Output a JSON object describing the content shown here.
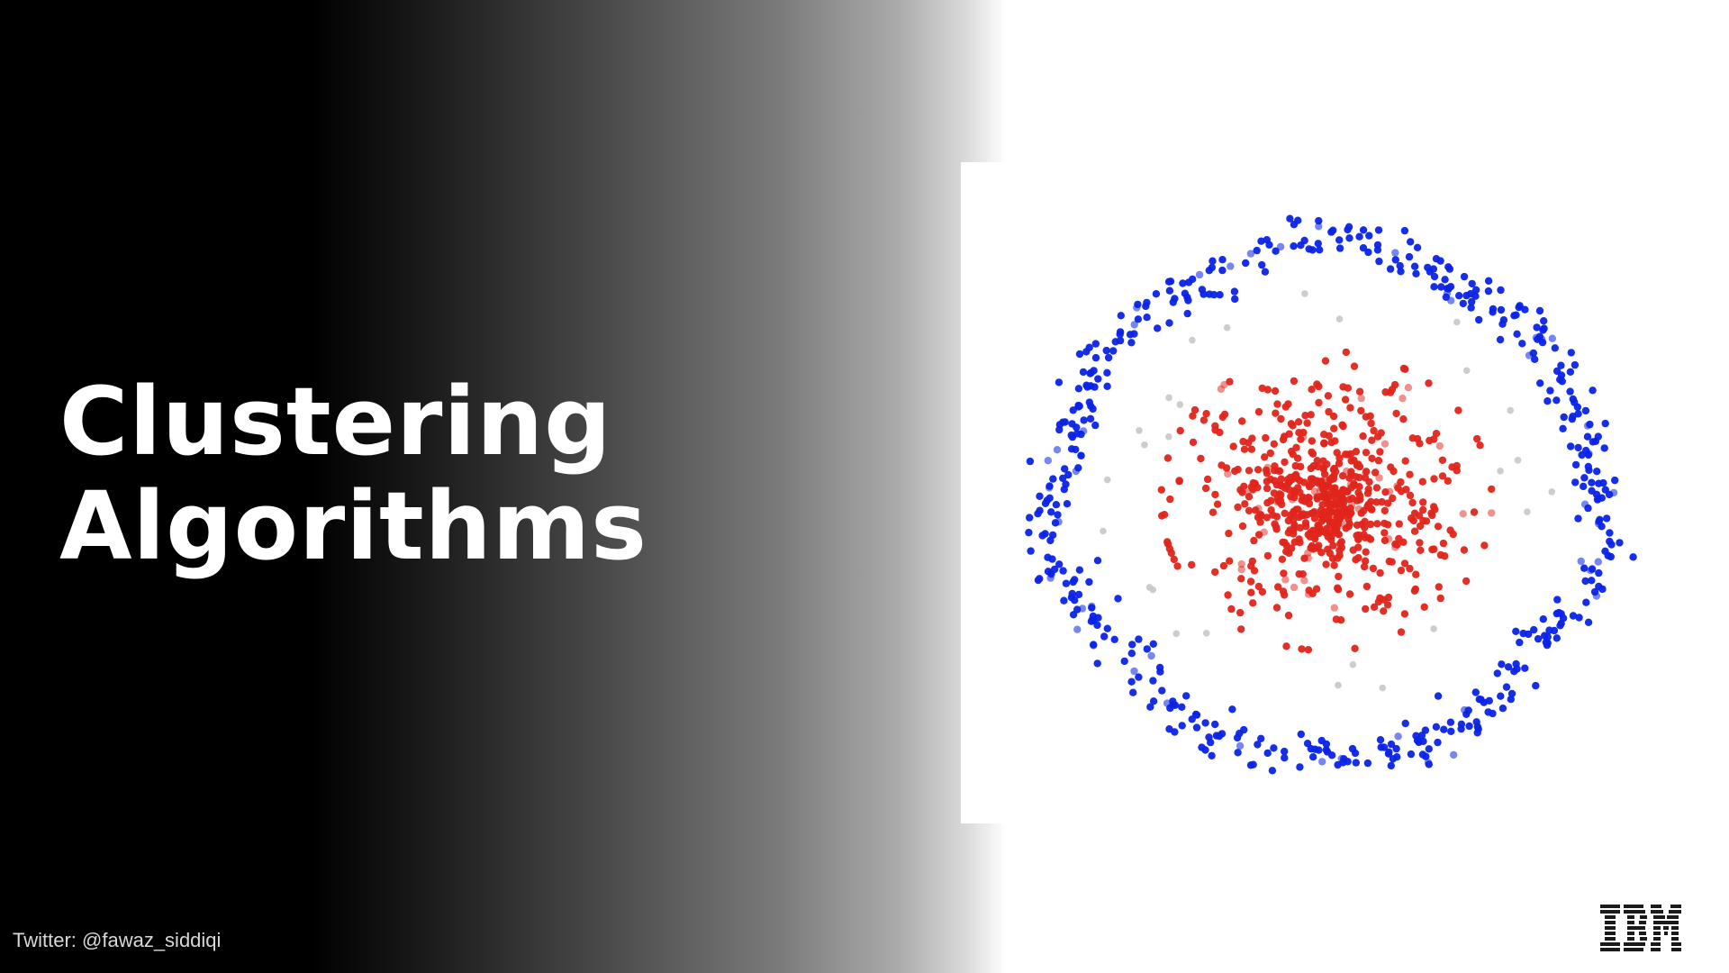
{
  "slide": {
    "title_line1": "Clustering",
    "title_line2": "Algorithms",
    "twitter_handle": "Twitter: @fawaz_siddiqi",
    "logo_text": "IBM"
  },
  "colors": {
    "outer_cluster": "#0a23e6",
    "inner_cluster": "#e0251b",
    "noise": "#c8c8c8",
    "title_text": "#ffffff",
    "logo": "#1a1a1a"
  },
  "icons": {
    "logo": "ibm-logo"
  }
}
